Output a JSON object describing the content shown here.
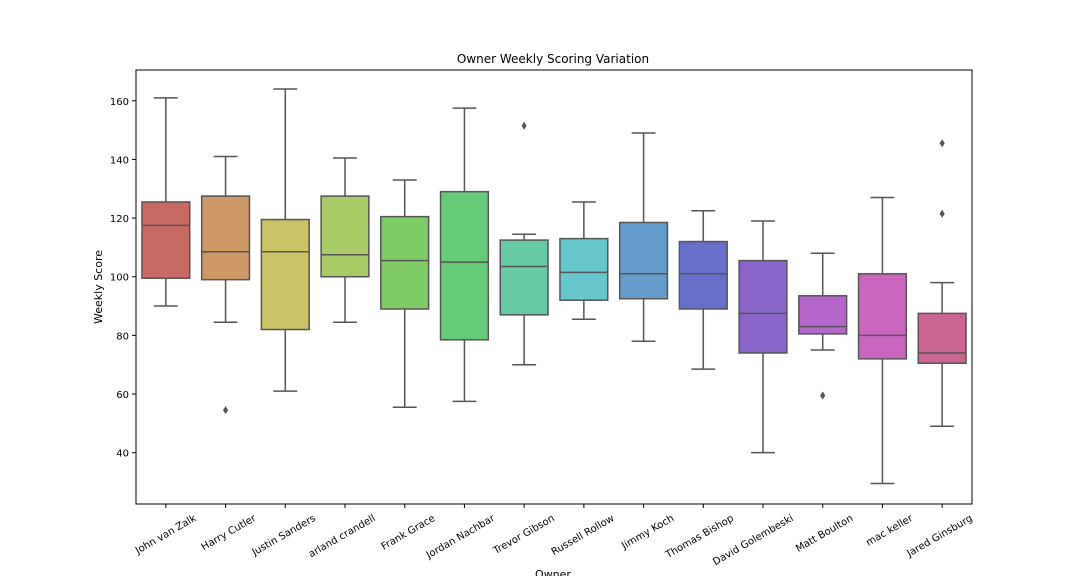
{
  "chart_data": {
    "type": "box",
    "title": "Owner Weekly Scoring Variation",
    "xlabel": "Owner",
    "ylabel": "Weekly Score",
    "ylim": [
      22.5,
      170.5
    ],
    "yticks": [
      40,
      60,
      80,
      100,
      120,
      140,
      160
    ],
    "grid": false,
    "boxes": [
      {
        "name": "John van Zalk",
        "whisker_low": 90,
        "q1": 99.5,
        "median": 117.5,
        "q3": 125.5,
        "whisker_high": 161,
        "outliers": [],
        "color": "#c96a64"
      },
      {
        "name": "Harry Cutler",
        "whisker_low": 84.5,
        "q1": 99,
        "median": 108.5,
        "q3": 127.5,
        "whisker_high": 141,
        "outliers": [
          54.5
        ],
        "color": "#cb9866"
      },
      {
        "name": "Justin Sanders",
        "whisker_low": 61,
        "q1": 82,
        "median": 108.5,
        "q3": 119.5,
        "whisker_high": 164,
        "outliers": [],
        "color": "#cbc466"
      },
      {
        "name": "arland crandell",
        "whisker_low": 84.5,
        "q1": 100,
        "median": 107.5,
        "q3": 127.5,
        "whisker_high": 140.5,
        "outliers": [],
        "color": "#a9cb66"
      },
      {
        "name": "Frank Grace",
        "whisker_low": 55.5,
        "q1": 89,
        "median": 105.5,
        "q3": 120.5,
        "whisker_high": 133,
        "outliers": [],
        "color": "#7fcb66"
      },
      {
        "name": "Jordan Nachbar",
        "whisker_low": 57.5,
        "q1": 78.5,
        "median": 105,
        "q3": 129,
        "whisker_high": 157.5,
        "outliers": [],
        "color": "#66cb78"
      },
      {
        "name": "Trevor Gibson",
        "whisker_low": 70,
        "q1": 87,
        "median": 103.5,
        "q3": 112.5,
        "whisker_high": 114.5,
        "outliers": [
          151.5
        ],
        "color": "#66cba4"
      },
      {
        "name": "Russell Rollow",
        "whisker_low": 85.5,
        "q1": 92,
        "median": 101.5,
        "q3": 113,
        "whisker_high": 125.5,
        "outliers": [],
        "color": "#66c6cb"
      },
      {
        "name": "Jimmy Koch",
        "whisker_low": 78,
        "q1": 92.5,
        "median": 101,
        "q3": 118.5,
        "whisker_high": 149,
        "outliers": [],
        "color": "#669ccb"
      },
      {
        "name": "Thomas Bishop",
        "whisker_low": 68.5,
        "q1": 89,
        "median": 101,
        "q3": 112,
        "whisker_high": 122.5,
        "outliers": [],
        "color": "#6670cb"
      },
      {
        "name": "David Golembeski",
        "whisker_low": 40,
        "q1": 74,
        "median": 87.5,
        "q3": 105.5,
        "whisker_high": 119,
        "outliers": [],
        "color": "#8a66cb"
      },
      {
        "name": "Matt Boulton",
        "whisker_low": 75,
        "q1": 80.5,
        "median": 83,
        "q3": 93.5,
        "whisker_high": 108,
        "outliers": [
          59.5
        ],
        "color": "#b466cb"
      },
      {
        "name": "mac keller",
        "whisker_low": 29.5,
        "q1": 72,
        "median": 80,
        "q3": 101,
        "whisker_high": 127,
        "outliers": [],
        "color": "#cb66be"
      },
      {
        "name": "Jared Ginsburg",
        "whisker_low": 49,
        "q1": 70.5,
        "median": 74,
        "q3": 87.5,
        "whisker_high": 98,
        "outliers": [
          121.5,
          145.5
        ],
        "color": "#cb6692"
      }
    ]
  }
}
